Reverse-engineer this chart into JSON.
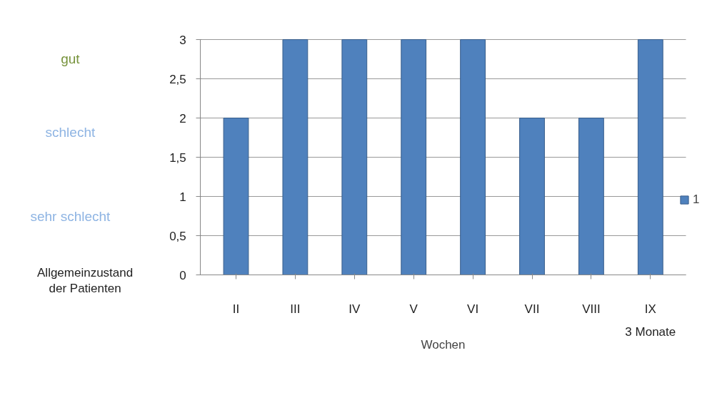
{
  "chart_data": {
    "type": "bar",
    "xlabel": "Wochen",
    "ylabel": "Allgemeinzustand der Patienten",
    "categories": [
      "II",
      "III",
      "IV",
      "V",
      "VI",
      "VII",
      "VIII",
      "IX"
    ],
    "series": [
      {
        "name": "1",
        "color": "#4f81bd",
        "values": [
          2,
          3,
          3,
          3,
          3,
          2,
          2,
          3
        ]
      }
    ],
    "ylim": [
      0,
      3
    ],
    "yticks": [
      0,
      {
        "value": 0.5,
        "label": "0,5"
      },
      1,
      {
        "value": 1.5,
        "label": "1,5"
      },
      2,
      {
        "value": 2.5,
        "label": "2,5"
      },
      3
    ],
    "grid": "y",
    "legend": "right",
    "annotations": [
      "gut",
      "schlecht",
      "sehr schlecht",
      "3 Monate"
    ]
  }
}
